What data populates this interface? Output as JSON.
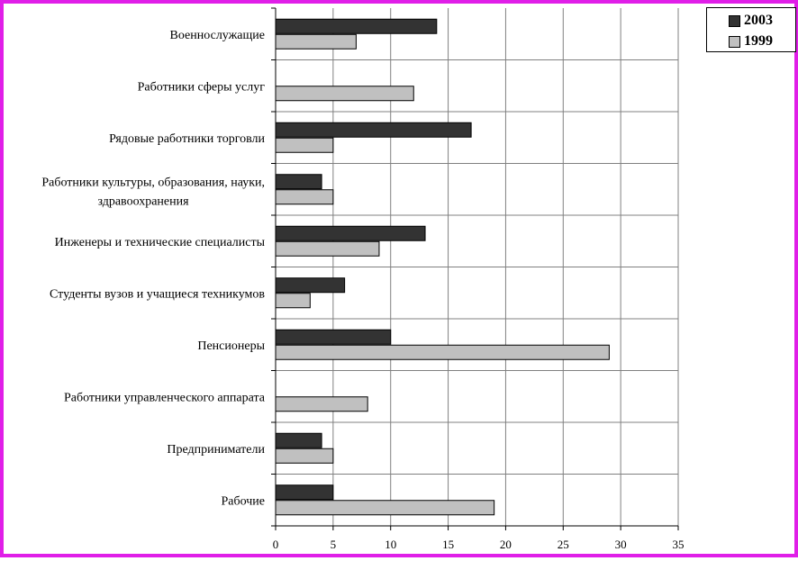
{
  "chart_data": {
    "type": "bar",
    "orientation": "horizontal",
    "categories": [
      "Военнослужащие",
      "Работники сферы услуг",
      "Рядовые работники торговли",
      [
        "Работники культуры, образования, науки,",
        "здравоохранения"
      ],
      "Инженеры и технические специалисты",
      "Студенты вузов и учащиеся техникумов",
      "Пенсионеры",
      "Работники управленческого аппарата",
      "Предприниматели",
      "Рабочие"
    ],
    "series": [
      {
        "name": "2003",
        "color": "#333333",
        "values": [
          14,
          0,
          17,
          4,
          13,
          6,
          10,
          0,
          4,
          5
        ]
      },
      {
        "name": "1999",
        "color": "#c0c0c0",
        "values": [
          7,
          12,
          5,
          5,
          9,
          3,
          29,
          8,
          5,
          19
        ]
      }
    ],
    "xlim": [
      0,
      35
    ],
    "xticks": [
      0,
      5,
      10,
      15,
      20,
      25,
      30,
      35
    ],
    "grid": true,
    "legend": "top-right"
  }
}
